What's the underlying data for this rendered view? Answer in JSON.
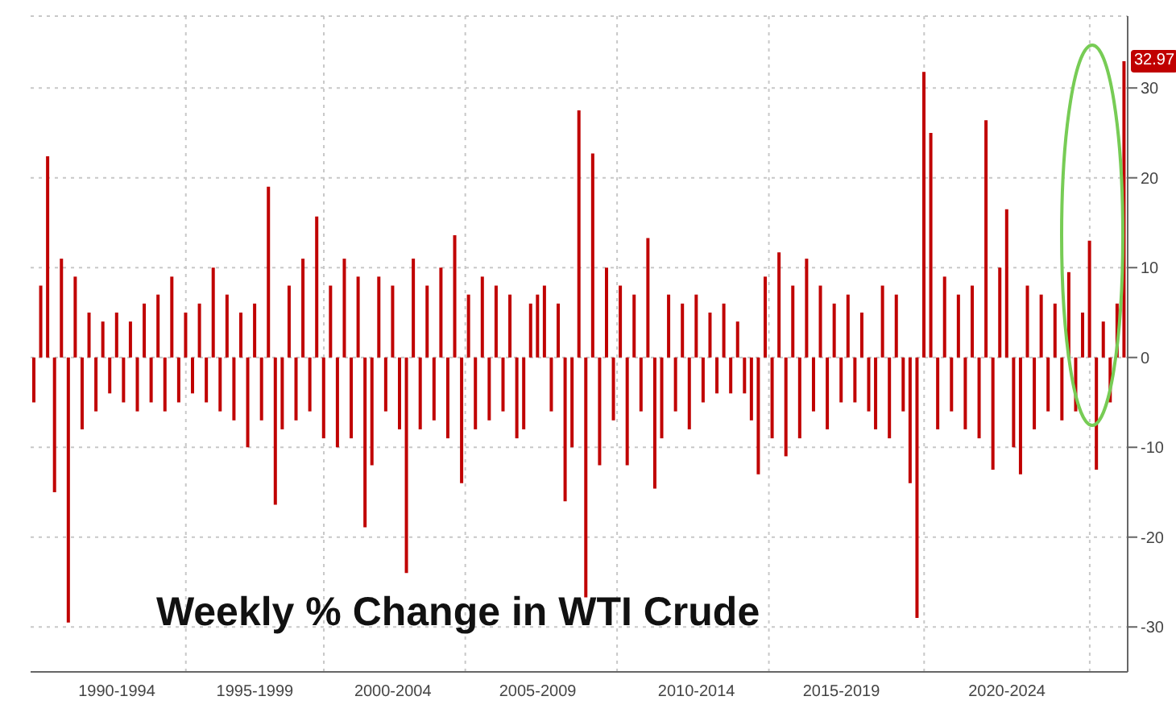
{
  "chart_data": {
    "type": "bar",
    "title": "Weekly % Change in WTI Crude",
    "values": [
      -5,
      8,
      22.4,
      -15,
      11,
      -29.5,
      9,
      -8,
      5,
      -6,
      4,
      -4,
      5,
      -5,
      4,
      -6,
      6,
      -5,
      7,
      -6,
      9,
      -5,
      5,
      -4,
      6,
      -5,
      10,
      -6,
      7,
      -7,
      5,
      -10,
      6,
      -7,
      19,
      -16.4,
      -8,
      8,
      -7,
      11,
      -6,
      15.7,
      -9,
      8,
      -10,
      11,
      -9,
      9,
      -18.9,
      -12,
      9,
      -6,
      8,
      -8,
      -24,
      11,
      -8,
      8,
      -7,
      10,
      -9,
      13.6,
      -14,
      7,
      -8,
      9,
      -7,
      8,
      -6,
      7,
      -9,
      -8,
      6,
      7,
      8,
      -6,
      6,
      -16,
      -10,
      27.5,
      -26.7,
      22.7,
      -12,
      10,
      -7,
      8,
      -12,
      7,
      -6,
      13.3,
      -14.6,
      -9,
      7,
      -6,
      6,
      -8,
      7,
      -5,
      5,
      -4,
      6,
      -4,
      4,
      -4,
      -7,
      -13,
      9,
      -9,
      11.7,
      -11,
      8,
      -9,
      11,
      -6,
      8,
      -8,
      6,
      -5,
      7,
      -5,
      5,
      -6,
      -8,
      8,
      -9,
      7,
      -6,
      -14,
      -29,
      31.8,
      25,
      -8,
      9,
      -6,
      7,
      -8,
      8,
      -9,
      26.4,
      -12.5,
      10,
      16.5,
      -10,
      -13,
      8,
      -8,
      7,
      -6,
      6,
      -7,
      9.5,
      -6,
      5,
      13,
      -12.5,
      4,
      -5,
      6,
      32.97
    ],
    "color": "#c00000",
    "categories": [
      null,
      null,
      null,
      null,
      null,
      null,
      null,
      null,
      null,
      null,
      null,
      null,
      "1990-1994",
      null,
      null,
      null,
      null,
      null,
      null,
      null,
      null,
      null,
      null,
      null,
      null,
      null,
      null,
      null,
      null,
      null,
      null,
      null,
      "1995-1999",
      null,
      null,
      null,
      null,
      null,
      null,
      null,
      null,
      null,
      null,
      null,
      null,
      null,
      null,
      null,
      null,
      null,
      null,
      null,
      "2000-2004",
      null,
      null,
      null,
      null,
      null,
      null,
      null,
      null,
      null,
      null,
      null,
      null,
      null,
      null,
      null,
      null,
      null,
      null,
      null,
      null,
      "2005-2009",
      null,
      null,
      null,
      null,
      null,
      null,
      null,
      null,
      null,
      null,
      null,
      null,
      null,
      null,
      null,
      null,
      null,
      null,
      null,
      null,
      null,
      null,
      "2010-2014",
      null,
      null,
      null,
      null,
      null,
      null,
      null,
      null,
      null,
      null,
      null,
      null,
      null,
      null,
      null,
      null,
      null,
      null,
      null,
      null,
      "2015-2019",
      null,
      null,
      null,
      null,
      null,
      null,
      null,
      null,
      null,
      null,
      null,
      null,
      null,
      null,
      null,
      null,
      null,
      null,
      null,
      null,
      null,
      null,
      null,
      "2020-2024",
      null,
      null,
      null,
      null,
      null,
      null,
      null,
      null,
      null,
      null,
      null,
      null,
      null,
      null,
      null,
      null,
      null
    ],
    "ylim": [
      -35,
      38
    ],
    "yticks": [
      -30,
      -20,
      -10,
      0,
      10,
      20,
      30
    ],
    "grid": true,
    "annotations": [
      {
        "text": "32.97",
        "y": 32.97
      }
    ]
  }
}
